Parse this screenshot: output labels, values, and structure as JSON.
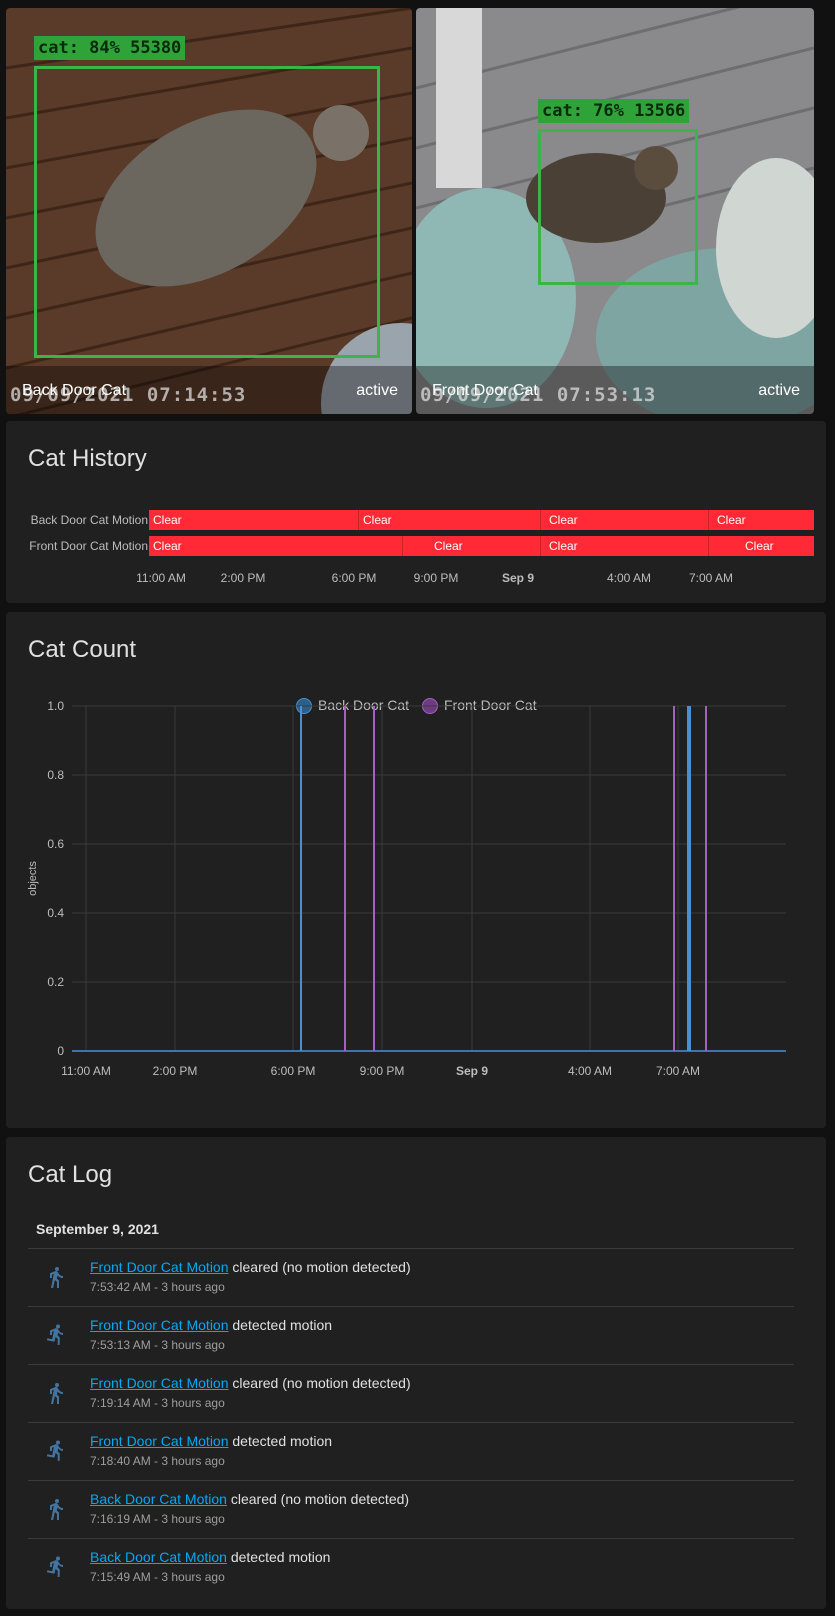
{
  "cameras": [
    {
      "name": "Back Door Cat",
      "state": "active",
      "detection": "cat: 84% 55380",
      "stamp": "09/09/2021 07:14:53"
    },
    {
      "name": "Front Door Cat",
      "state": "active",
      "detection": "cat: 76% 13566",
      "stamp": "09/09/2021 07:53:13"
    }
  ],
  "history": {
    "title": "Cat History",
    "rows": [
      {
        "label": "Back Door Cat Motion",
        "segments": [
          "Clear",
          "Clear",
          "Clear",
          "Clear"
        ]
      },
      {
        "label": "Front Door Cat Motion",
        "segments": [
          "Clear",
          "Clear",
          "Clear",
          "Clear"
        ]
      }
    ],
    "ticks": [
      "11:00 AM",
      "2:00 PM",
      "6:00 PM",
      "9:00 PM",
      "Sep 9",
      "4:00 AM",
      "7:00 AM"
    ],
    "colors": {
      "clear": "#ff2a35"
    }
  },
  "count": {
    "title": "Cat Count",
    "legend": [
      "Back Door Cat",
      "Front Door Cat"
    ]
  },
  "chart_data": {
    "type": "line",
    "ylabel": "objects",
    "ylim": [
      0,
      1
    ],
    "yticks": [
      "1.0",
      "0.8",
      "0.6",
      "0.4",
      "0.2",
      "0"
    ],
    "xticks": [
      "11:00 AM",
      "2:00 PM",
      "6:00 PM",
      "9:00 PM",
      "Sep 9",
      "4:00 AM",
      "7:00 AM"
    ],
    "grid": true,
    "legend_position": "top",
    "series": [
      {
        "name": "Back Door Cat",
        "color": "#4a8fd4",
        "spikes_at": [
          "6:15 PM",
          "7:14 AM",
          "7:16 AM"
        ],
        "values": "0 baseline with spikes to 1"
      },
      {
        "name": "Front Door Cat",
        "color": "#a361c4",
        "spikes_at": [
          "7:45 PM",
          "8:45 PM",
          "6:55 AM",
          "7:19 AM",
          "7:53 AM"
        ],
        "values": "0 baseline with spikes to 1"
      }
    ]
  },
  "log": {
    "title": "Cat Log",
    "date": "September 9, 2021",
    "entries": [
      {
        "entity": "Front Door Cat Motion",
        "message": "cleared (no motion detected)",
        "time": "7:53:42 AM - 3 hours ago",
        "icon": "walk-icon"
      },
      {
        "entity": "Front Door Cat Motion",
        "message": "detected motion",
        "time": "7:53:13 AM - 3 hours ago",
        "icon": "run-icon"
      },
      {
        "entity": "Front Door Cat Motion",
        "message": "cleared (no motion detected)",
        "time": "7:19:14 AM - 3 hours ago",
        "icon": "walk-icon"
      },
      {
        "entity": "Front Door Cat Motion",
        "message": "detected motion",
        "time": "7:18:40 AM - 3 hours ago",
        "icon": "run-icon"
      },
      {
        "entity": "Back Door Cat Motion",
        "message": "cleared (no motion detected)",
        "time": "7:16:19 AM - 3 hours ago",
        "icon": "walk-icon"
      },
      {
        "entity": "Back Door Cat Motion",
        "message": "detected motion",
        "time": "7:15:49 AM - 3 hours ago",
        "icon": "run-icon"
      }
    ]
  }
}
